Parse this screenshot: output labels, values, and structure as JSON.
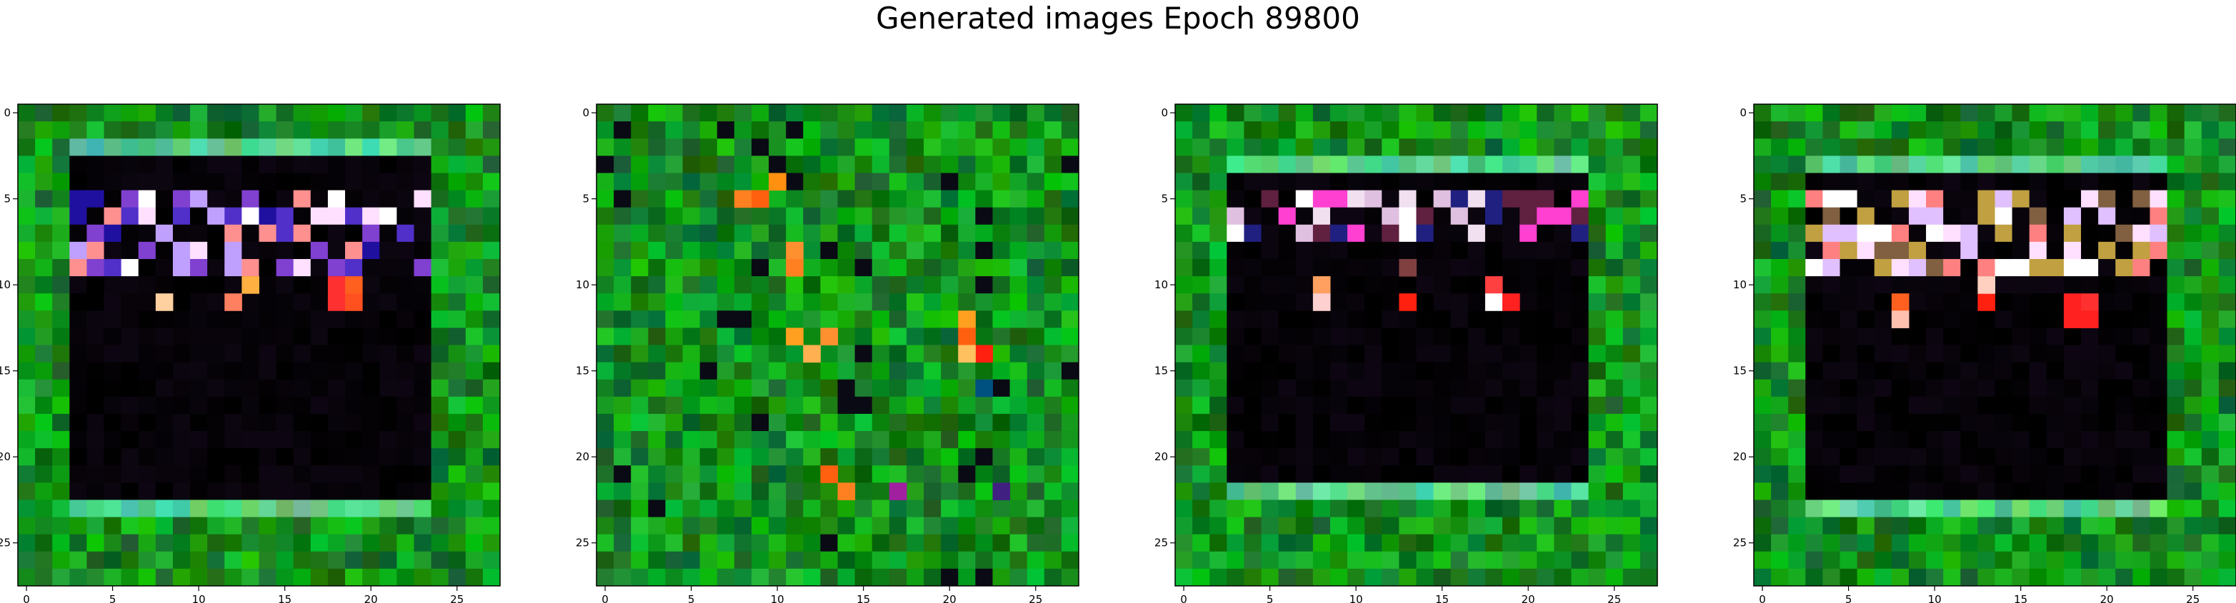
{
  "title": "Generated images Epoch 89800",
  "chart_data": [
    {
      "type": "heatmap",
      "image": 1,
      "rows": 28,
      "cols": 28,
      "xlim": [
        -0.5,
        27.5
      ],
      "ylim": [
        27.5,
        -0.5
      ],
      "xticks": [
        0,
        5,
        10,
        15,
        20,
        25
      ],
      "yticks": [
        0,
        5,
        10,
        15,
        20,
        25
      ],
      "pattern": {
        "border": "green",
        "dark_region": [
          3,
          22,
          3,
          23
        ],
        "bright_band": [
          5,
          9
        ],
        "band_colors": [
          "#ffe0ff",
          "#5030c8",
          "#2010a0",
          "#ff9090",
          "#ffffff",
          "#8040d0",
          "#c0a0ff"
        ],
        "accents": [
          [
            11,
            8,
            "#ffd0a0"
          ],
          [
            11,
            12,
            "#ff8060"
          ],
          [
            10,
            13,
            "#ffb040"
          ],
          [
            10,
            18,
            "#ff3030"
          ],
          [
            11,
            18,
            "#ff3030"
          ],
          [
            11,
            19,
            "#ff5020"
          ],
          [
            10,
            19,
            "#ff6020"
          ]
        ],
        "seed": 11
      }
    },
    {
      "type": "heatmap",
      "image": 2,
      "rows": 28,
      "cols": 28,
      "xlim": [
        -0.5,
        27.5
      ],
      "ylim": [
        27.5,
        -0.5
      ],
      "xticks": [
        0,
        5,
        10,
        15,
        20,
        25
      ],
      "yticks": [
        0,
        5,
        10,
        15,
        20,
        25
      ],
      "pattern": {
        "border": "green-only",
        "dark_region": null,
        "bright_band": null,
        "band_colors": [],
        "accents": [
          [
            5,
            8,
            "#ff8020"
          ],
          [
            5,
            9,
            "#ff6010"
          ],
          [
            4,
            10,
            "#ff9010"
          ],
          [
            8,
            11,
            "#ff9030"
          ],
          [
            9,
            11,
            "#ff8020"
          ],
          [
            13,
            11,
            "#ffa020"
          ],
          [
            14,
            12,
            "#ffb050"
          ],
          [
            13,
            13,
            "#ff9030"
          ],
          [
            12,
            21,
            "#ffa020"
          ],
          [
            13,
            21,
            "#ff6010"
          ],
          [
            14,
            22,
            "#ff2010"
          ],
          [
            14,
            21,
            "#ffc060"
          ],
          [
            21,
            13,
            "#ff6010"
          ],
          [
            22,
            14,
            "#ff8020"
          ],
          [
            22,
            17,
            "#a020a0"
          ],
          [
            22,
            23,
            "#402080"
          ],
          [
            16,
            22,
            "#005080"
          ]
        ],
        "seed": 27
      }
    },
    {
      "type": "heatmap",
      "image": 3,
      "rows": 28,
      "cols": 28,
      "xlim": [
        -0.5,
        27.5
      ],
      "ylim": [
        27.5,
        -0.5
      ],
      "xticks": [
        0,
        5,
        10,
        15,
        20,
        25
      ],
      "yticks": [
        0,
        5,
        10,
        15,
        20,
        25
      ],
      "pattern": {
        "border": "green",
        "dark_region": [
          4,
          21,
          3,
          23
        ],
        "bright_band": [
          5,
          7
        ],
        "band_colors": [
          "#ffffff",
          "#ff40d0",
          "#e0c0e0",
          "#202080",
          "#f0e0f0",
          "#602040"
        ],
        "accents": [
          [
            10,
            8,
            "#ffa060"
          ],
          [
            11,
            8,
            "#ffd0d0"
          ],
          [
            11,
            13,
            "#ff2010"
          ],
          [
            10,
            18,
            "#ff4040"
          ],
          [
            11,
            18,
            "#ffffff"
          ],
          [
            11,
            19,
            "#ff2020"
          ],
          [
            9,
            13,
            "#804040"
          ]
        ],
        "seed": 43
      }
    },
    {
      "type": "heatmap",
      "image": 4,
      "rows": 28,
      "cols": 28,
      "xlim": [
        -0.5,
        27.5
      ],
      "ylim": [
        27.5,
        -0.5
      ],
      "xticks": [
        0,
        5,
        10,
        15,
        20,
        25
      ],
      "yticks": [
        0,
        5,
        10,
        15,
        20,
        25
      ],
      "pattern": {
        "border": "green",
        "dark_region": [
          4,
          22,
          3,
          23
        ],
        "bright_band": [
          5,
          9
        ],
        "band_colors": [
          "#ffffff",
          "#e0c0ff",
          "#c0a040",
          "#ff8080",
          "#ffe0ff",
          "#806040"
        ],
        "accents": [
          [
            11,
            8,
            "#ff6020"
          ],
          [
            12,
            8,
            "#ffc0b0"
          ],
          [
            11,
            13,
            "#ff2010"
          ],
          [
            11,
            18,
            "#ff2020"
          ],
          [
            12,
            18,
            "#ff2020"
          ],
          [
            11,
            19,
            "#ff3030"
          ],
          [
            12,
            19,
            "#ff2020"
          ],
          [
            10,
            13,
            "#ffd0c0"
          ]
        ],
        "seed": 59
      }
    }
  ]
}
